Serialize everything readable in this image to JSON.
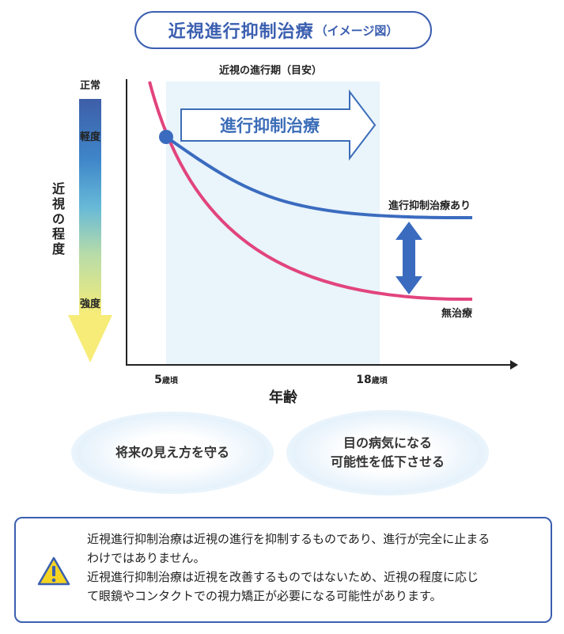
{
  "title": {
    "main": "近視進行抑制治療",
    "sub": "（イメージ図）"
  },
  "diagram": {
    "period_label": "近視の進行期（目安）",
    "arrow_label": "進行抑制治療",
    "y_axis_title": [
      "近",
      "視",
      "の",
      "程",
      "度"
    ],
    "y_levels": {
      "normal": "正常",
      "mild": "軽度",
      "strong": "強度"
    },
    "x_axis_title": "年齢",
    "x_ticks": [
      {
        "num": "5",
        "unit": "歳頃"
      },
      {
        "num": "18",
        "unit": "歳頃"
      }
    ],
    "series": [
      {
        "name": "進行抑制治療あり",
        "color": "#3a6bbf"
      },
      {
        "name": "無治療",
        "color": "#e2447d"
      }
    ]
  },
  "bubbles": [
    {
      "lines": [
        "将来の見え方を守る"
      ]
    },
    {
      "lines": [
        "目の病気になる",
        "可能性を低下させる"
      ]
    }
  ],
  "notice": {
    "icon": "warning-icon",
    "lines": [
      "近視進行抑制治療は近視の進行を抑制するものであり、進行が完全に止まる",
      "わけではありません。",
      "近視進行抑制治療は近視を改善するものではないため、近視の程度に応じ",
      "て眼鏡やコンタクトでの視力矯正が必要になる可能性があります。"
    ]
  },
  "colors": {
    "accent": "#3b5fb0",
    "treated": "#3a6bbf",
    "untreated": "#e2447d",
    "period_bg": "#e9f4fb"
  }
}
